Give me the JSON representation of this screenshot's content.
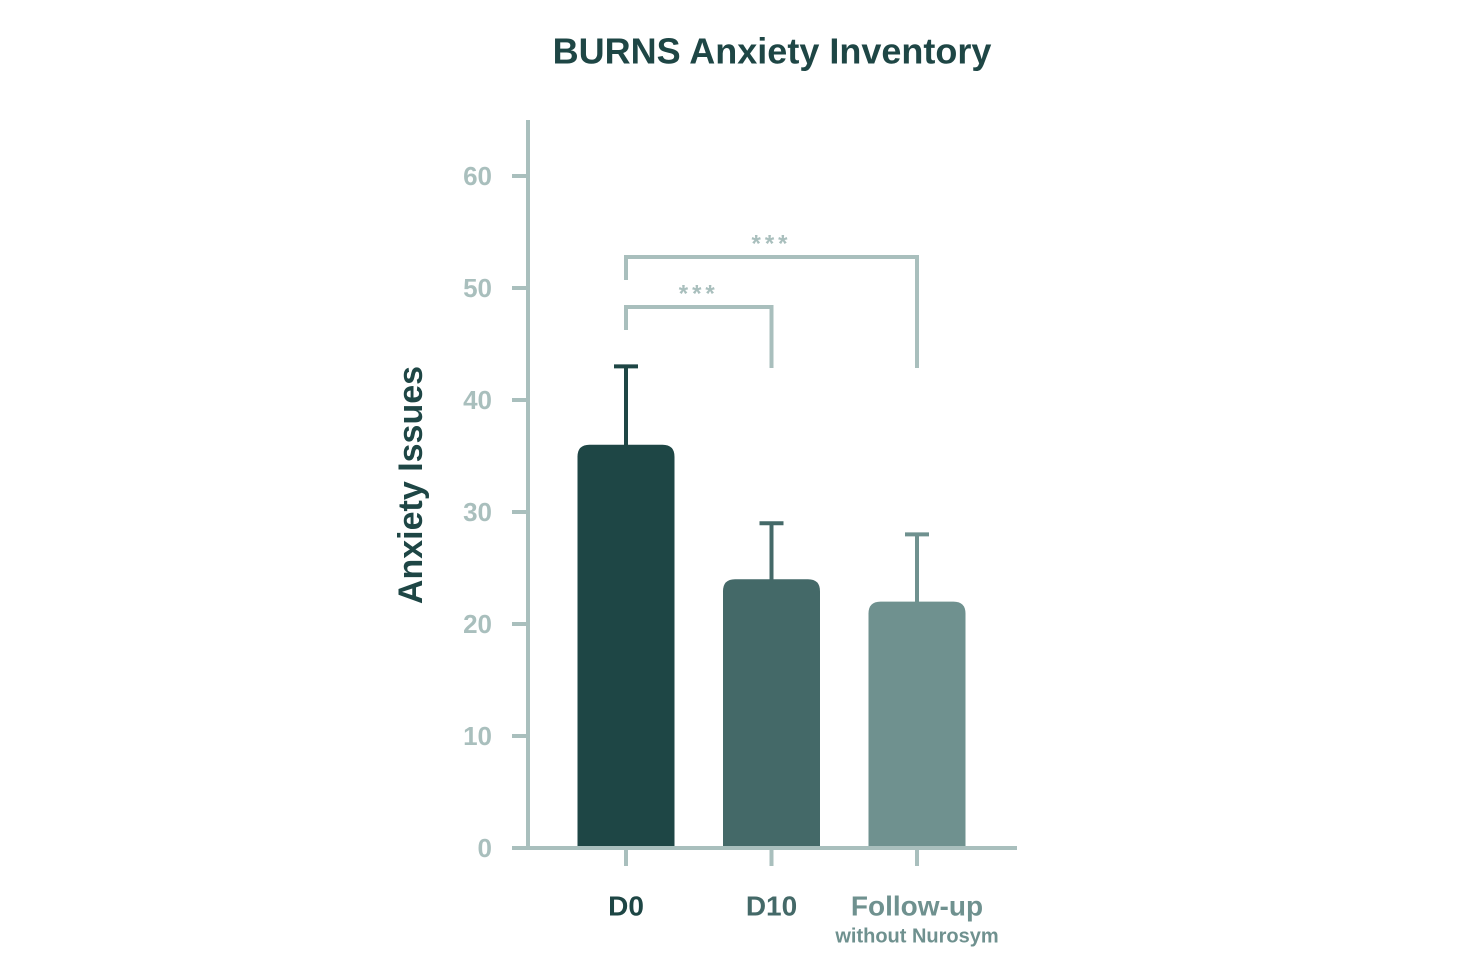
{
  "chart_data": {
    "type": "bar",
    "title": "BURNS Anxiety Inventory",
    "y_label": "Anxiety Issues",
    "categories": [
      "D0",
      "D10",
      "Follow-up"
    ],
    "category_notes": {
      "Follow-up": "without Nurosym"
    },
    "values": [
      36,
      24,
      22
    ],
    "errors": [
      7,
      5,
      6
    ],
    "colors": [
      "#1e4645",
      "#446968",
      "#6f918f"
    ],
    "ylim": [
      0,
      65
    ],
    "yticks": [
      0,
      10,
      20,
      30,
      40,
      50,
      60
    ],
    "axis_color": "#a9bfbd",
    "significance": [
      {
        "between": [
          "D0",
          "D10"
        ],
        "label": "***"
      },
      {
        "between": [
          "D0",
          "Follow-up"
        ],
        "label": "***"
      }
    ]
  }
}
